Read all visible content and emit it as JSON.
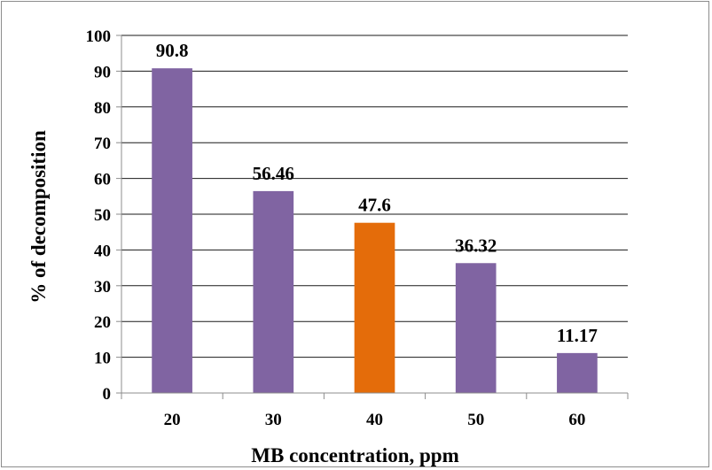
{
  "chart_data": {
    "type": "bar",
    "categories": [
      "20",
      "30",
      "40",
      "50",
      "60"
    ],
    "values": [
      90.8,
      56.46,
      47.6,
      36.32,
      11.17
    ],
    "value_labels": [
      "90.8",
      "56.46",
      "47.6",
      "36.32",
      "11.17"
    ],
    "bar_colors": [
      "#8064a2",
      "#8064a2",
      "#e46c0a",
      "#8064a2",
      "#8064a2"
    ],
    "title": "",
    "xlabel": "MB concentration, ppm",
    "ylabel": "% of decomposition",
    "ylim": [
      0,
      100
    ],
    "y_ticks": [
      0,
      10,
      20,
      30,
      40,
      50,
      60,
      70,
      80,
      90,
      100
    ],
    "grid": true,
    "legend": "none",
    "gridline_color": "#1a1a1a",
    "axis_color": "#8c8c8c"
  }
}
